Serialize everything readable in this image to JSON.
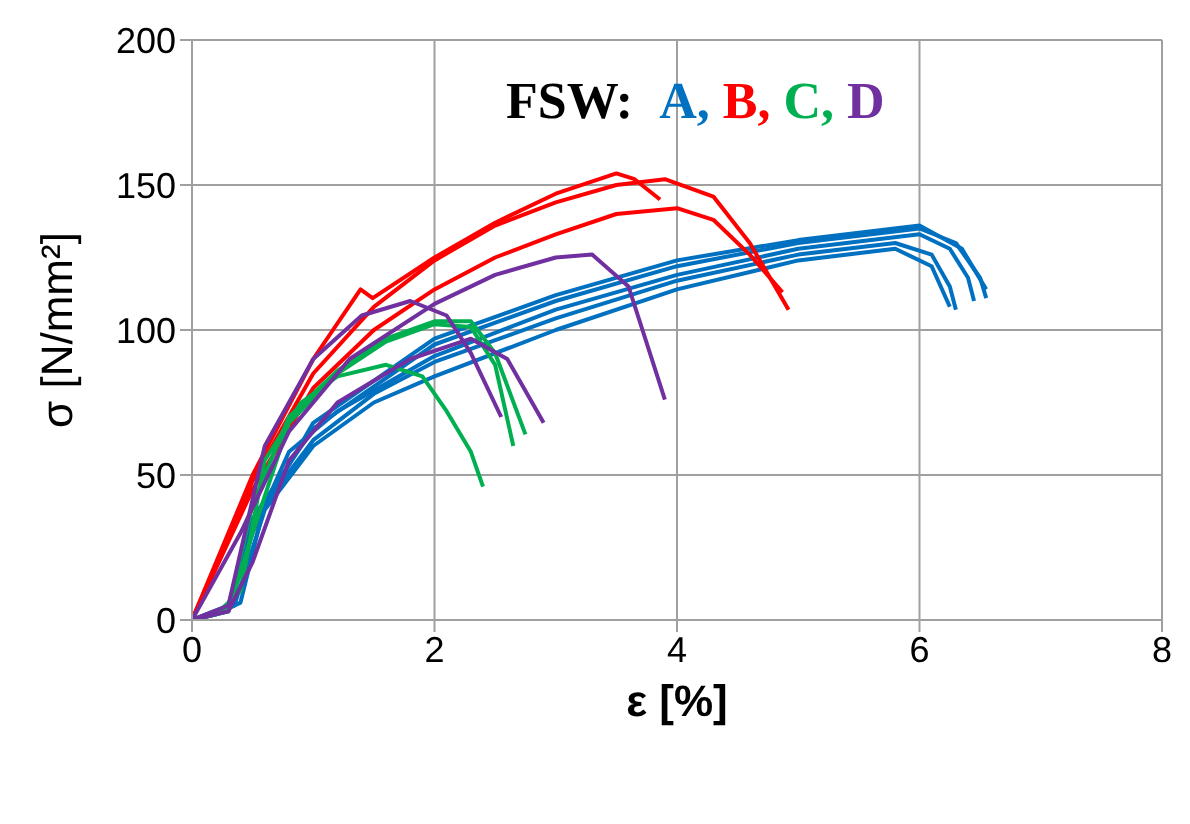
{
  "chart_data": {
    "type": "line",
    "xlabel": "ε [%]",
    "ylabel": "σ [N/mm²]",
    "legend_title": "FSW:",
    "legend": "top",
    "grid": true,
    "xlim": [
      0,
      8
    ],
    "xticks": [
      0,
      2,
      4,
      6,
      8
    ],
    "ylim": [
      0,
      200
    ],
    "yticks": [
      0,
      50,
      100,
      150,
      200
    ],
    "series": [
      {
        "name": "A,",
        "color": "#0070c0",
        "x": [
          0,
          0.2,
          0.4,
          0.6,
          1,
          1.5,
          2,
          3,
          4,
          5,
          5.8,
          6.1,
          6.25,
          6.3
        ],
        "values": [
          0,
          2,
          6,
          40,
          62,
          78,
          89,
          104,
          117,
          126,
          130,
          126,
          115,
          107
        ]
      },
      {
        "color": "#0070c0",
        "x": [
          0,
          0.3,
          0.5,
          0.8,
          1.2,
          2,
          3,
          4,
          5,
          6,
          6.25,
          6.4,
          6.45
        ],
        "values": [
          0,
          3,
          30,
          58,
          72,
          91,
          107,
          119,
          128,
          133,
          128,
          118,
          110
        ]
      },
      {
        "color": "#0070c0",
        "x": [
          0,
          0.3,
          0.5,
          1,
          2,
          3,
          4,
          5,
          6,
          6.3,
          6.5,
          6.55
        ],
        "values": [
          0,
          4,
          35,
          66,
          95,
          110,
          122,
          130,
          135,
          130,
          118,
          111
        ]
      },
      {
        "color": "#0070c0",
        "x": [
          0,
          0.3,
          0.45,
          1,
          2,
          3,
          4,
          5,
          6,
          6.35,
          6.55
        ],
        "values": [
          0,
          5,
          28,
          68,
          97,
          112,
          124,
          131,
          136,
          128,
          114
        ]
      },
      {
        "color": "#0070c0",
        "x": [
          0,
          0.35,
          0.6,
          1,
          1.5,
          2,
          3,
          4,
          5,
          5.8,
          6.1,
          6.25
        ],
        "values": [
          0,
          5,
          38,
          60,
          75,
          84,
          100,
          114,
          124,
          128,
          122,
          108
        ]
      },
      {
        "name": "B,",
        "color": "#ff0000",
        "x": [
          0,
          0.5,
          1,
          1.39,
          1.49,
          2,
          2.5,
          3,
          3.5,
          3.65,
          3.86
        ],
        "values": [
          0,
          50,
          90,
          114,
          111,
          125,
          137,
          147,
          154,
          152,
          145
        ]
      },
      {
        "color": "#ff0000",
        "x": [
          0,
          0.5,
          1,
          1.5,
          2,
          2.5,
          3,
          3.5,
          3.9,
          4.3,
          4.6,
          4.92
        ],
        "values": [
          0,
          48,
          85,
          108,
          124,
          136,
          144,
          150,
          152,
          146,
          130,
          107
        ]
      },
      {
        "color": "#ff0000",
        "x": [
          0,
          0.5,
          1,
          1.5,
          2,
          2.5,
          3,
          3.5,
          4,
          4.3,
          4.6,
          4.87
        ],
        "values": [
          0,
          45,
          80,
          100,
          114,
          125,
          133,
          140,
          142,
          138,
          126,
          113
        ]
      },
      {
        "name": "C,",
        "color": "#00b050",
        "x": [
          0,
          0.2,
          0.4,
          0.6,
          0.9,
          1.2,
          1.6,
          1.9,
          2.1,
          2.3,
          2.4
        ],
        "values": [
          0,
          2,
          10,
          55,
          75,
          84,
          88,
          84,
          72,
          58,
          46
        ]
      },
      {
        "color": "#00b050",
        "x": [
          0,
          0.3,
          0.5,
          0.8,
          1.2,
          1.6,
          2,
          2.3,
          2.5,
          2.65
        ],
        "values": [
          0,
          3,
          30,
          68,
          85,
          96,
          102,
          101,
          88,
          60
        ]
      },
      {
        "color": "#00b050",
        "x": [
          0,
          0.3,
          0.5,
          0.8,
          1.2,
          1.6,
          2,
          2.3,
          2.5,
          2.75
        ],
        "values": [
          0,
          4,
          40,
          70,
          86,
          97,
          103,
          103,
          92,
          64
        ]
      },
      {
        "name": "D",
        "color": "#7030a0",
        "x": [
          0,
          0.3,
          0.6,
          1,
          1.4,
          1.8,
          2.1,
          2.3,
          2.55
        ],
        "values": [
          0,
          5,
          60,
          90,
          105,
          110,
          105,
          92,
          70
        ]
      },
      {
        "color": "#7030a0",
        "x": [
          0,
          0.3,
          0.5,
          0.8,
          1.2,
          1.8,
          2.3,
          2.6,
          2.9
        ],
        "values": [
          0,
          3,
          20,
          55,
          75,
          90,
          97,
          90,
          68
        ]
      },
      {
        "color": "#7030a0",
        "x": [
          0,
          0.4,
          0.8,
          1.3,
          2,
          2.5,
          3,
          3.3,
          3.6,
          3.9
        ],
        "values": [
          0,
          30,
          65,
          90,
          109,
          119,
          125,
          126,
          115,
          76
        ]
      }
    ]
  }
}
